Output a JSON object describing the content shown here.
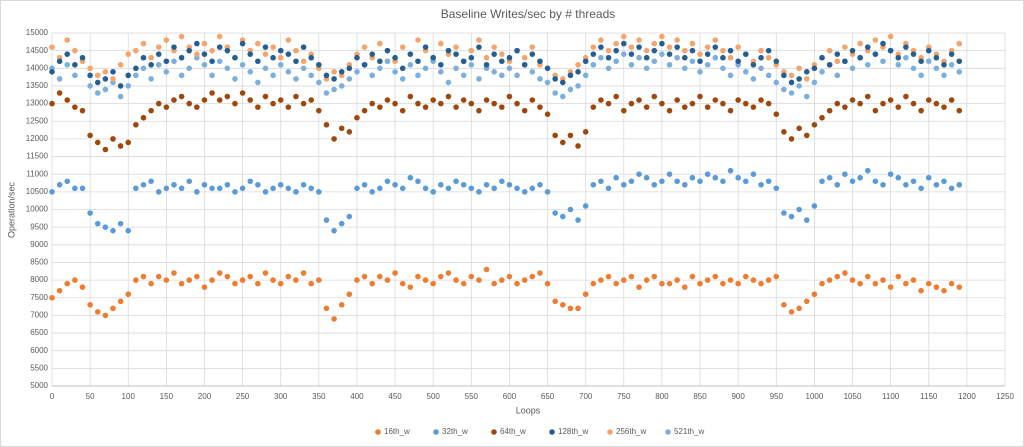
{
  "chart_data": {
    "type": "scatter",
    "title": "Baseline Writes/sec by # threads",
    "x_label": "Loops",
    "y_label": "Operation/sec",
    "xlim": [
      0,
      1250
    ],
    "xticks": [
      0,
      50,
      100,
      150,
      200,
      250,
      300,
      350,
      400,
      450,
      500,
      550,
      600,
      650,
      700,
      750,
      800,
      850,
      900,
      950,
      1000,
      1050,
      1100,
      1150,
      1200,
      1250
    ],
    "ylim": [
      5000,
      15000
    ],
    "yticks": [
      5000,
      5500,
      6000,
      6500,
      7000,
      7500,
      8000,
      8500,
      9000,
      9500,
      10000,
      10500,
      11000,
      11500,
      12000,
      12500,
      13000,
      13500,
      14000,
      14500,
      15000
    ],
    "grid": true,
    "legend": "bottom",
    "x": [
      0,
      10,
      20,
      30,
      40,
      50,
      60,
      70,
      80,
      90,
      100,
      110,
      120,
      130,
      140,
      150,
      160,
      170,
      180,
      190,
      200,
      210,
      220,
      230,
      240,
      250,
      260,
      270,
      280,
      290,
      300,
      310,
      320,
      330,
      340,
      350,
      360,
      370,
      380,
      390,
      400,
      410,
      420,
      430,
      440,
      450,
      460,
      470,
      480,
      490,
      500,
      510,
      520,
      530,
      540,
      550,
      560,
      570,
      580,
      590,
      600,
      610,
      620,
      630,
      640,
      650,
      660,
      670,
      680,
      690,
      700,
      710,
      720,
      730,
      740,
      750,
      760,
      770,
      780,
      790,
      800,
      810,
      820,
      830,
      840,
      850,
      860,
      870,
      880,
      890,
      900,
      910,
      920,
      930,
      940,
      950,
      960,
      970,
      980,
      990,
      1000,
      1010,
      1020,
      1030,
      1040,
      1050,
      1060,
      1070,
      1080,
      1090,
      1100,
      1110,
      1120,
      1130,
      1140,
      1150,
      1160,
      1170,
      1180,
      1190
    ],
    "series": [
      {
        "name": "521th_w",
        "color": "#7cafdd",
        "values": [
          14000,
          13700,
          14100,
          13800,
          14200,
          13500,
          13300,
          13400,
          13600,
          13200,
          13500,
          13800,
          14000,
          13700,
          14100,
          13900,
          14200,
          13800,
          14000,
          14300,
          14100,
          13800,
          14200,
          14000,
          13700,
          14100,
          13900,
          13600,
          14000,
          13800,
          14100,
          13900,
          13700,
          14000,
          13800,
          13600,
          13300,
          13400,
          13500,
          13700,
          13900,
          14100,
          13800,
          14000,
          14200,
          13900,
          13700,
          14100,
          13800,
          14000,
          14200,
          13900,
          13600,
          14000,
          13800,
          14100,
          13700,
          14000,
          13900,
          13800,
          14000,
          13800,
          14100,
          13900,
          13700,
          13600,
          13300,
          13200,
          13400,
          13500,
          13800,
          14100,
          14300,
          14000,
          14200,
          14400,
          14100,
          14300,
          14000,
          14200,
          14400,
          14100,
          14300,
          14000,
          14200,
          13900,
          14100,
          14300,
          14000,
          13800,
          14100,
          13900,
          13700,
          14000,
          13800,
          13600,
          13400,
          13300,
          13500,
          13200,
          13600,
          13900,
          14100,
          13800,
          14200,
          14000,
          14300,
          14100,
          14400,
          14200,
          14500,
          14100,
          14300,
          14000,
          13800,
          14200,
          14000,
          13800,
          14100,
          13900
        ]
      },
      {
        "name": "256th_w",
        "color": "#f4a46c",
        "values": [
          14600,
          14300,
          14800,
          14500,
          14200,
          14000,
          13800,
          13900,
          13700,
          14100,
          14400,
          14500,
          14700,
          14300,
          14600,
          14800,
          14500,
          14900,
          14600,
          14400,
          14700,
          14500,
          14900,
          14600,
          14300,
          14800,
          14500,
          14700,
          14400,
          14600,
          14300,
          14800,
          14500,
          14200,
          14400,
          14000,
          13700,
          13900,
          13800,
          14100,
          14400,
          14600,
          14300,
          14700,
          14500,
          14200,
          14600,
          14400,
          14800,
          14500,
          14300,
          14700,
          14400,
          14600,
          14200,
          14500,
          14800,
          14300,
          14600,
          14400,
          14200,
          14500,
          14300,
          14600,
          14100,
          14000,
          13800,
          13700,
          13900,
          14100,
          14300,
          14600,
          14800,
          14500,
          14700,
          14900,
          14600,
          14800,
          14500,
          14700,
          14900,
          14600,
          14800,
          14500,
          14700,
          14400,
          14600,
          14800,
          14500,
          14300,
          14600,
          14400,
          14200,
          14500,
          14300,
          14100,
          13900,
          13800,
          14000,
          13700,
          14100,
          14300,
          14500,
          14200,
          14600,
          14400,
          14700,
          14500,
          14800,
          14600,
          14900,
          14400,
          14700,
          14500,
          14300,
          14600,
          14400,
          14200,
          14500,
          14700
        ]
      },
      {
        "name": "128th_w",
        "color": "#255e91",
        "values": [
          13900,
          14200,
          14400,
          14100,
          14300,
          13800,
          13600,
          13700,
          13900,
          13500,
          13800,
          14000,
          14300,
          14100,
          14400,
          14200,
          14600,
          14300,
          14500,
          14700,
          14400,
          14200,
          14600,
          14500,
          14300,
          14700,
          14400,
          14200,
          14600,
          14300,
          14500,
          14400,
          14200,
          14600,
          14300,
          14100,
          13800,
          13700,
          13900,
          14000,
          14300,
          14100,
          14400,
          14200,
          14500,
          14300,
          14000,
          14400,
          14200,
          14600,
          14300,
          14100,
          14500,
          14400,
          14200,
          14300,
          14600,
          14100,
          14400,
          14200,
          14300,
          14500,
          14100,
          14400,
          14200,
          14000,
          13700,
          13600,
          13800,
          13900,
          14200,
          14400,
          14600,
          14300,
          14500,
          14700,
          14400,
          14600,
          14300,
          14500,
          14700,
          14400,
          14600,
          14300,
          14500,
          14200,
          14400,
          14600,
          14300,
          14500,
          14200,
          14400,
          14100,
          14300,
          14500,
          14200,
          13800,
          13600,
          13700,
          13900,
          14000,
          14300,
          14100,
          14400,
          14200,
          14500,
          14300,
          14600,
          14400,
          14700,
          14500,
          14300,
          14600,
          14400,
          14200,
          14500,
          14300,
          14100,
          14400,
          14200
        ]
      },
      {
        "name": "64th_w",
        "color": "#9e480e",
        "values": [
          13000,
          13300,
          13100,
          12900,
          12800,
          12100,
          11900,
          11700,
          12000,
          11800,
          11900,
          12400,
          12600,
          12800,
          13000,
          12900,
          13100,
          13200,
          13000,
          12900,
          13100,
          13300,
          13100,
          13200,
          13000,
          13300,
          13100,
          12900,
          13200,
          13000,
          13100,
          12900,
          13200,
          13000,
          13100,
          12800,
          12400,
          12000,
          12300,
          12200,
          12600,
          12800,
          13000,
          12900,
          13100,
          13000,
          12800,
          13200,
          13000,
          12900,
          13100,
          13000,
          13200,
          12900,
          13100,
          13000,
          12800,
          13100,
          13000,
          12900,
          13200,
          13000,
          12800,
          13100,
          12900,
          12700,
          12100,
          11900,
          12100,
          11800,
          12200,
          12900,
          13100,
          13000,
          13200,
          12800,
          13000,
          13100,
          12900,
          13200,
          13000,
          12800,
          13100,
          12900,
          13000,
          13200,
          12900,
          13100,
          13000,
          12800,
          13100,
          13000,
          12900,
          13100,
          13000,
          12700,
          12200,
          12000,
          12300,
          12100,
          12400,
          12600,
          12800,
          13000,
          12900,
          13100,
          13000,
          13200,
          12800,
          13000,
          13100,
          12900,
          13200,
          13000,
          12800,
          13100,
          13000,
          12900,
          13100,
          12800
        ]
      },
      {
        "name": "32th_w",
        "color": "#5b9bd5",
        "values": [
          10500,
          10700,
          10800,
          10600,
          10600,
          9900,
          9600,
          9500,
          9400,
          9600,
          9400,
          10600,
          10700,
          10800,
          10500,
          10600,
          10700,
          10600,
          10800,
          10500,
          10700,
          10600,
          10600,
          10700,
          10500,
          10600,
          10800,
          10700,
          10500,
          10600,
          10700,
          10600,
          10500,
          10700,
          10600,
          10500,
          9700,
          9400,
          9600,
          9800,
          10600,
          10700,
          10500,
          10600,
          10800,
          10700,
          10600,
          10900,
          10800,
          10600,
          10500,
          10700,
          10600,
          10800,
          10700,
          10600,
          10500,
          10700,
          10600,
          10800,
          10700,
          10600,
          10500,
          10600,
          10700,
          10500,
          9900,
          9800,
          10000,
          9700,
          10100,
          10700,
          10800,
          10600,
          10900,
          10700,
          10800,
          11000,
          10900,
          10700,
          10800,
          11000,
          10800,
          10700,
          10900,
          10800,
          11000,
          10900,
          10800,
          11100,
          10900,
          10800,
          11000,
          10700,
          10800,
          10600,
          9900,
          9800,
          10000,
          9700,
          10100,
          10800,
          10900,
          10700,
          11000,
          10800,
          10900,
          11100,
          10800,
          10700,
          11000,
          10900,
          10700,
          10800,
          10600,
          10900,
          10700,
          10800,
          10600,
          10700
        ]
      },
      {
        "name": "16th_w",
        "color": "#ed7d31",
        "values": [
          7500,
          7700,
          7900,
          8000,
          7800,
          7300,
          7100,
          7000,
          7200,
          7400,
          7600,
          8000,
          8100,
          7900,
          8100,
          8000,
          8200,
          7900,
          8000,
          8100,
          7800,
          8000,
          8200,
          8100,
          7900,
          8000,
          8100,
          7900,
          8200,
          8000,
          7900,
          8100,
          8000,
          8200,
          7900,
          8000,
          7200,
          6900,
          7300,
          7600,
          8000,
          8100,
          7900,
          8100,
          8000,
          8200,
          7900,
          7800,
          8100,
          8000,
          7900,
          8100,
          8200,
          8000,
          7900,
          8100,
          8000,
          8300,
          7900,
          8000,
          8100,
          7900,
          8000,
          8100,
          8200,
          7900,
          7400,
          7300,
          7200,
          7200,
          7600,
          7900,
          8000,
          8100,
          7900,
          8000,
          8100,
          7800,
          8000,
          8100,
          7900,
          7900,
          8000,
          7800,
          8100,
          7900,
          8000,
          8100,
          7900,
          8000,
          7900,
          8100,
          8000,
          7900,
          8000,
          8100,
          7300,
          7100,
          7200,
          7400,
          7600,
          7900,
          8000,
          8100,
          8200,
          8000,
          7900,
          8100,
          7900,
          8000,
          7800,
          8100,
          7900,
          8000,
          7700,
          7900,
          7800,
          7700,
          7900,
          7800
        ]
      }
    ]
  }
}
